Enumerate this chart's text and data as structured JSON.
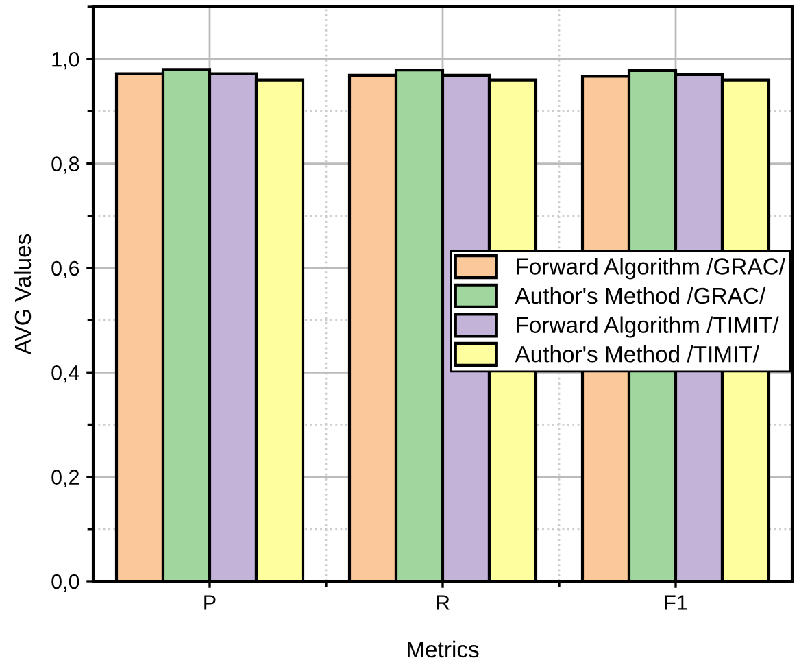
{
  "chart_data": {
    "type": "bar",
    "xlabel": "Metrics",
    "ylabel": "AVG Values",
    "categories": [
      "P",
      "R",
      "F1"
    ],
    "series": [
      {
        "name": "Forward Algorithm /GRAC/",
        "color": "#fbc899",
        "values": [
          0.972,
          0.969,
          0.967
        ]
      },
      {
        "name": "Author's Method /GRAC/",
        "color": "#9fd79e",
        "values": [
          0.98,
          0.979,
          0.978
        ]
      },
      {
        "name": "Forward Algorithm /TIMIT/",
        "color": "#c3b3d8",
        "values": [
          0.972,
          0.969,
          0.97
        ]
      },
      {
        "name": "Author's Method /TIMIT/",
        "color": "#fffe9f",
        "values": [
          0.96,
          0.96,
          0.96
        ]
      }
    ],
    "ylim": [
      0,
      1.1
    ],
    "yticks": [
      {
        "value": 0,
        "label": "0,0"
      },
      {
        "value": 0.2,
        "label": "0,2"
      },
      {
        "value": 0.4,
        "label": "0,4"
      },
      {
        "value": 0.6,
        "label": "0,6"
      },
      {
        "value": 0.8,
        "label": "0,8"
      },
      {
        "value": 1.0,
        "label": "1,0"
      }
    ],
    "grid": true,
    "legend": "right"
  }
}
